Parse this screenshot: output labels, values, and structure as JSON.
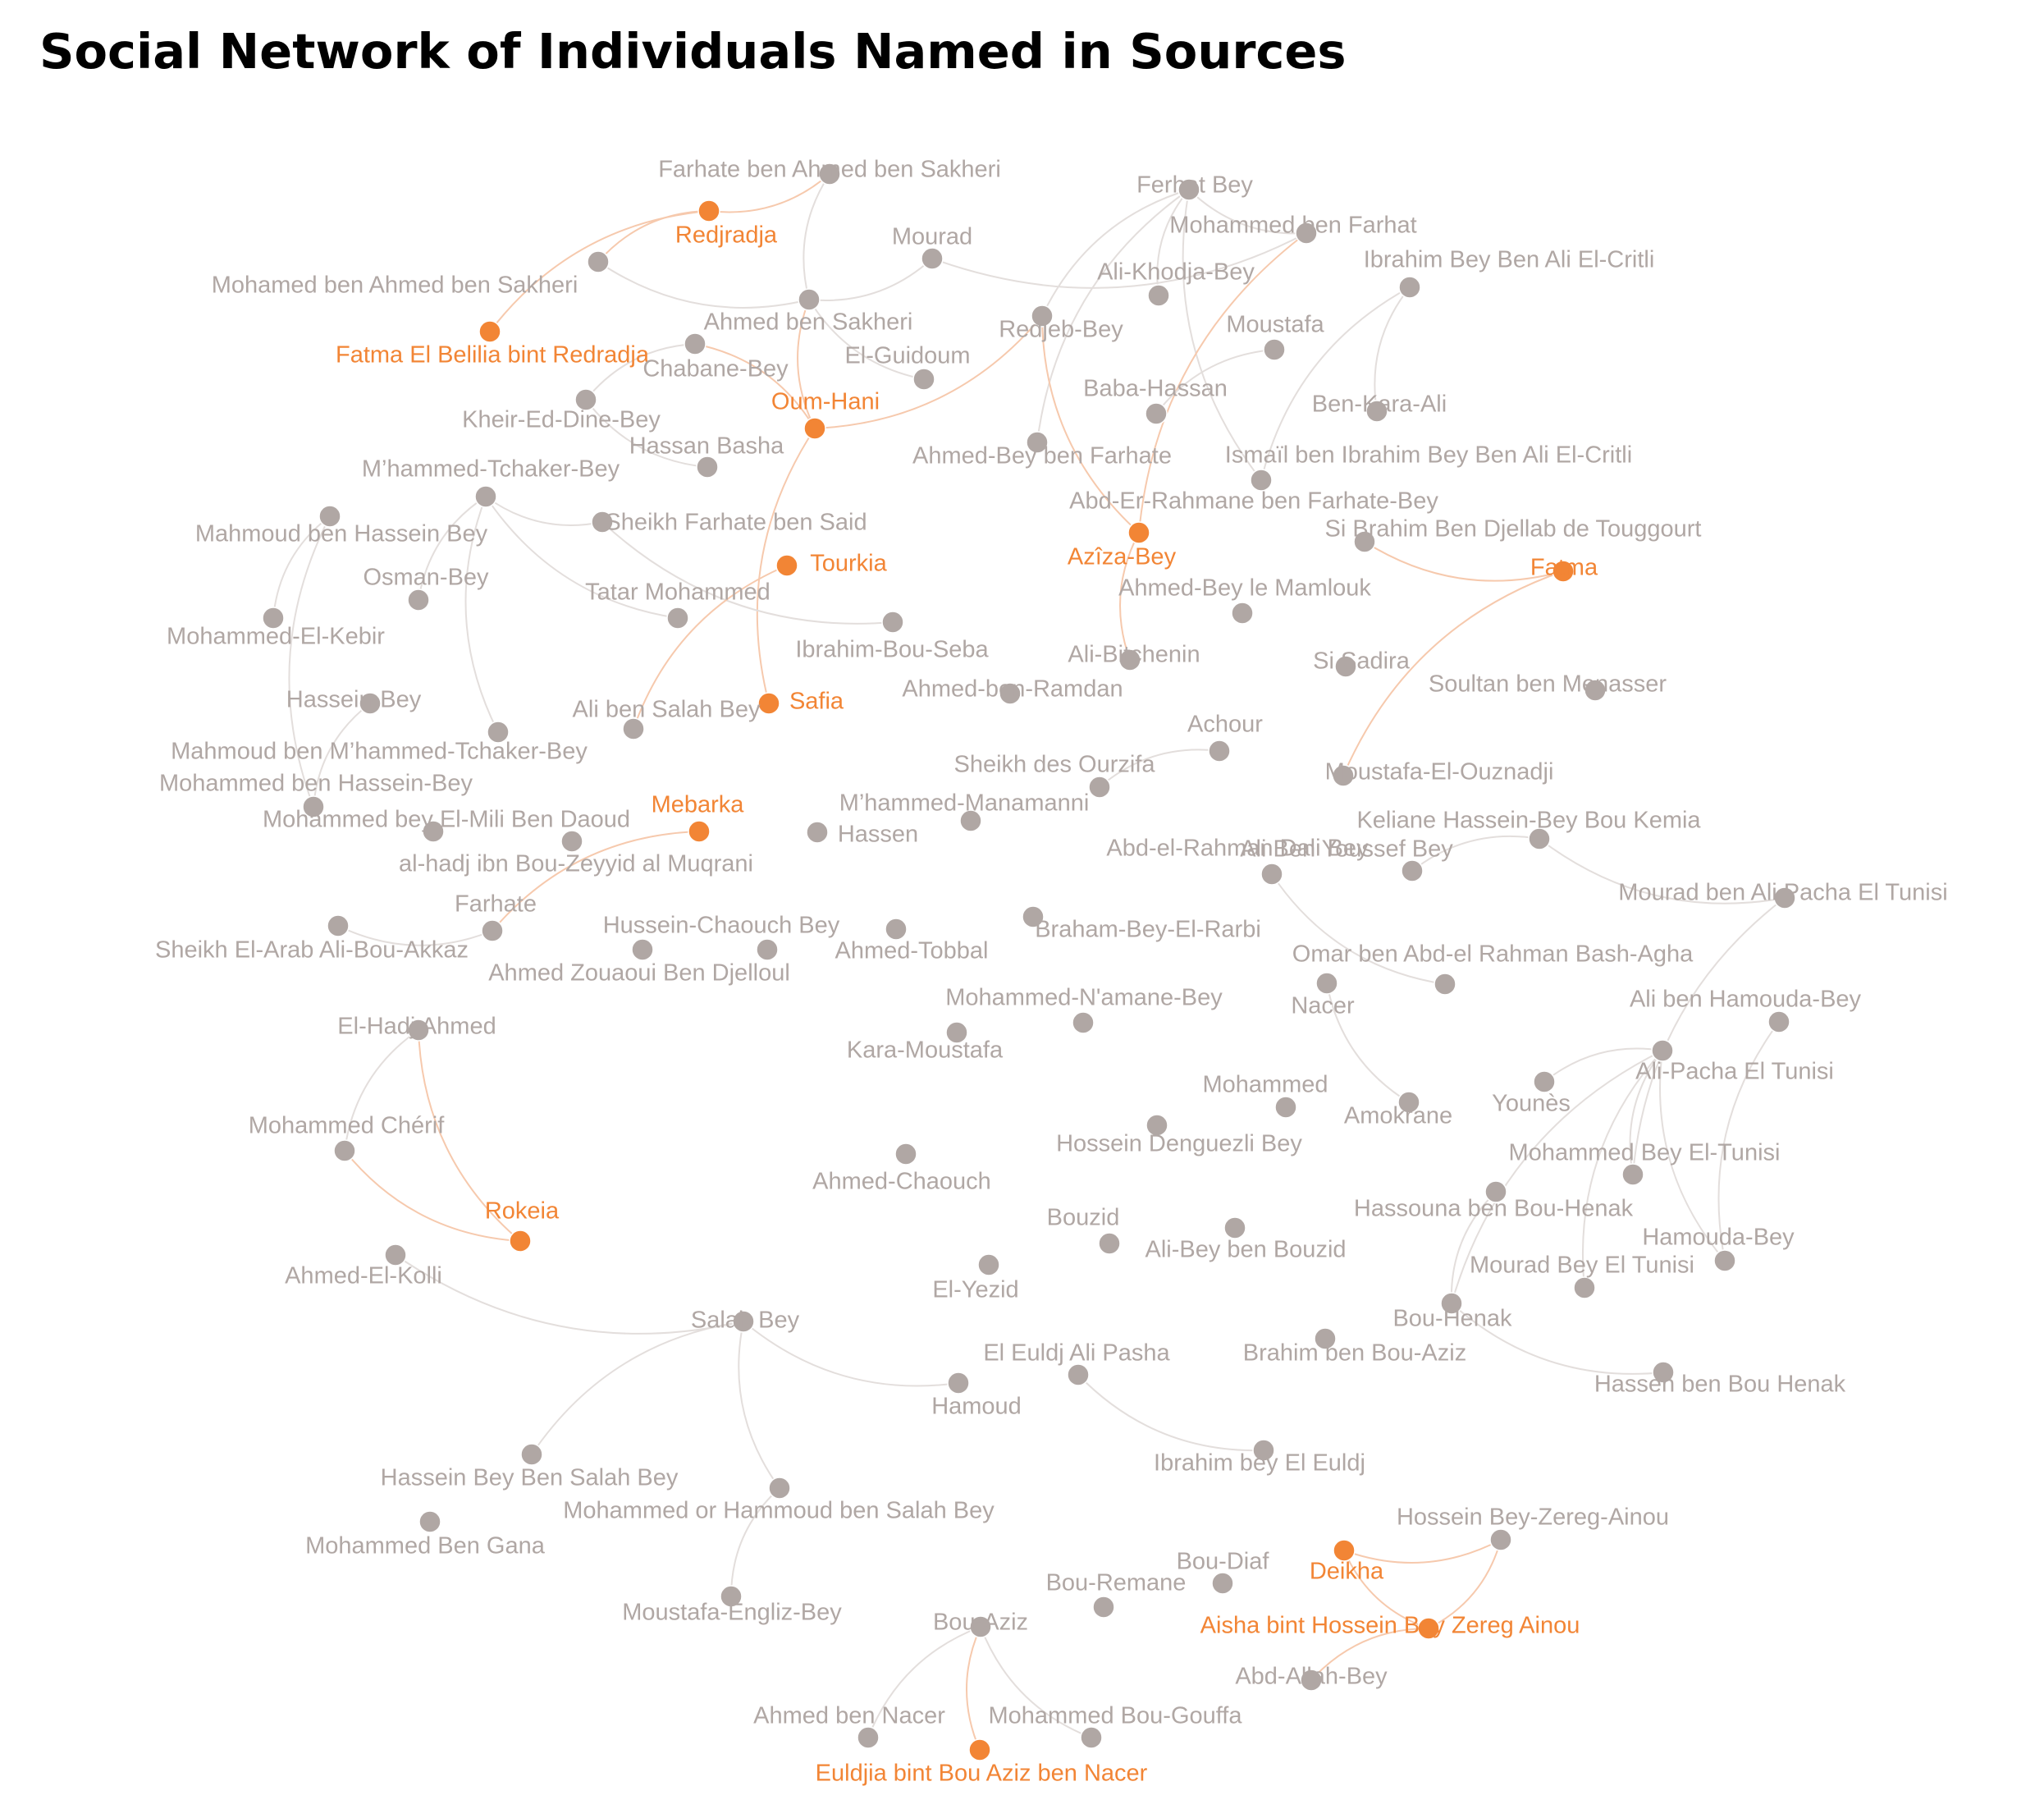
{
  "title": "Social Network of Individuals Named in Sources",
  "colors": {
    "male_node": "#b0a7a4",
    "male_label": "#b0a7a4",
    "female_node": "#f28535",
    "female_label": "#f28535",
    "edge": "#e3dedc",
    "edge_female": "#f6c9ad"
  },
  "nodes": [
    {
      "id": "farhate-ben-ahmed",
      "label": "Farhate ben Ahmed ben Sakheri",
      "female": false
    },
    {
      "id": "redjradja",
      "label": "Redjradja",
      "female": true
    },
    {
      "id": "mohamed-ben-ahmed",
      "label": "Mohamed ben Ahmed ben Sakheri",
      "female": false
    },
    {
      "id": "fatma-el-belilia",
      "label": "Fatma El Belilia bint Redradja",
      "female": true
    },
    {
      "id": "ahmed-ben-sakheri",
      "label": "Ahmed ben Sakheri",
      "female": false
    },
    {
      "id": "mourad",
      "label": "Mourad",
      "female": false
    },
    {
      "id": "chabane-bey",
      "label": "Chabane-Bey",
      "female": false
    },
    {
      "id": "el-guidoum",
      "label": "El-Guidoum",
      "female": false
    },
    {
      "id": "oum-hani",
      "label": "Oum-Hani",
      "female": true
    },
    {
      "id": "kheir-ed-dine-bey",
      "label": "Kheir-Ed-Dine-Bey",
      "female": false
    },
    {
      "id": "hassan-basha",
      "label": "Hassan Basha",
      "female": false
    },
    {
      "id": "mhammed-tchaker-bey",
      "label": "M’hammed-Tchaker-Bey",
      "female": false
    },
    {
      "id": "sheikh-farhate",
      "label": "Sheikh Farhate ben Said",
      "female": false
    },
    {
      "id": "mahmoud-ben-hassein",
      "label": "Mahmoud ben Hassein Bey",
      "female": false
    },
    {
      "id": "osman-bey",
      "label": "Osman-Bey",
      "female": false
    },
    {
      "id": "tourkia",
      "label": "Tourkia",
      "female": true
    },
    {
      "id": "tatar-mohammed",
      "label": "Tatar Mohammed",
      "female": false
    },
    {
      "id": "mohammed-el-kebir",
      "label": "Mohammed-El-Kebir",
      "female": false
    },
    {
      "id": "ibrahim-bou-seba",
      "label": "Ibrahim-Bou-Seba",
      "female": false
    },
    {
      "id": "hassein-bey",
      "label": "Hassein-Bey",
      "female": false
    },
    {
      "id": "ali-ben-salah",
      "label": "Ali ben Salah Bey",
      "female": false
    },
    {
      "id": "safia",
      "label": "Safia",
      "female": true
    },
    {
      "id": "mahmoud-ben-mhammed",
      "label": "Mahmoud ben M’hammed-Tchaker-Bey",
      "female": false
    },
    {
      "id": "mohammed-ben-hassein-bey",
      "label": "Mohammed ben Hassein-Bey",
      "female": false
    },
    {
      "id": "mohammed-bey-el-mili",
      "label": "Mohammed bey El-Mili Ben Daoud",
      "female": false
    },
    {
      "id": "mebarka",
      "label": "Mebarka",
      "female": true
    },
    {
      "id": "al-hadj",
      "label": "al-hadj ibn Bou-Zeyyid al Muqrani",
      "female": false
    },
    {
      "id": "farhate",
      "label": "Farhate",
      "female": false
    },
    {
      "id": "sheikh-el-arab",
      "label": "Sheikh El-Arab Ali-Bou-Akkaz",
      "female": false
    },
    {
      "id": "ahmed-zouaoui",
      "label": "Ahmed Zouaoui Ben Djelloul",
      "female": false
    },
    {
      "id": "hussein-chaouch",
      "label": "Hussein-Chaouch Bey",
      "female": false
    },
    {
      "id": "hassen",
      "label": "Hassen",
      "female": false
    },
    {
      "id": "mhammed-manamanni",
      "label": "M’hammed-Manamanni",
      "female": false
    },
    {
      "id": "ferhat-bey",
      "label": "Ferhat Bey",
      "female": false
    },
    {
      "id": "mohammed-ben-farhat",
      "label": "Mohammed ben Farhat",
      "female": false
    },
    {
      "id": "ali-khodja-bey",
      "label": "Ali-Khodja-Bey",
      "female": false
    },
    {
      "id": "redjeb-bey",
      "label": "Redjeb-Bey",
      "female": false
    },
    {
      "id": "ahmed-bey-ben-farhate",
      "label": "Ahmed-Bey ben Farhate",
      "female": false
    },
    {
      "id": "moustafa",
      "label": "Moustafa",
      "female": false
    },
    {
      "id": "baba-hassan",
      "label": "Baba-Hassan",
      "female": false
    },
    {
      "id": "ibrahim-el-critli",
      "label": "Ibrahim Bey Ben Ali El-Critli",
      "female": false
    },
    {
      "id": "ben-kara-ali",
      "label": "Ben-Kara-Ali",
      "female": false
    },
    {
      "id": "ismail",
      "label": "Ismaïl ben Ibrahim Bey Ben Ali El-Critli",
      "female": false
    },
    {
      "id": "abd-er-rahmane",
      "label": "Abd-Er-Rahmane ben Farhate-Bey",
      "female": false
    },
    {
      "id": "aziza-bey",
      "label": "Azîza-Bey",
      "female": true
    },
    {
      "id": "si-brahim",
      "label": "Si Brahim Ben Djellab de Touggourt",
      "female": false
    },
    {
      "id": "fatma",
      "label": "Fatma",
      "female": true
    },
    {
      "id": "ahmed-bey-mamlouk",
      "label": "Ahmed-Bey le Mamlouk",
      "female": false
    },
    {
      "id": "ali-bitchenin",
      "label": "Ali-Bitchenin",
      "female": false
    },
    {
      "id": "si-sadira",
      "label": "Si Sadira",
      "female": false
    },
    {
      "id": "ahmed-ben-ramdan",
      "label": "Ahmed-ben-Ramdan",
      "female": false
    },
    {
      "id": "soultan",
      "label": "Soultan ben Menasser",
      "female": false
    },
    {
      "id": "achour",
      "label": "Achour",
      "female": false
    },
    {
      "id": "sheikh-ourzifa",
      "label": "Sheikh des Ourzifa",
      "female": false
    },
    {
      "id": "moustafa-el-ouznadji",
      "label": "Moustafa-El-Ouznadji",
      "female": false
    },
    {
      "id": "keliane",
      "label": "Keliane Hassein-Bey Bou Kemia",
      "female": false
    },
    {
      "id": "abd-el-rahman-dali",
      "label": "Abd-el-Rahman Dali Bey",
      "female": false
    },
    {
      "id": "ali-ben-youssef",
      "label": "Ali Ben Youssef Bey",
      "female": false
    },
    {
      "id": "ahmed-tobbal",
      "label": "Ahmed-Tobbal",
      "female": false
    },
    {
      "id": "braham-bey",
      "label": "Braham-Bey-El-Rarbi",
      "female": false
    },
    {
      "id": "mourad-ben-ali",
      "label": "Mourad ben Ali Pacha El Tunisi",
      "female": false
    },
    {
      "id": "omar-ben-abd",
      "label": "Omar ben Abd-el Rahman Bash-Agha",
      "female": false
    },
    {
      "id": "nacer",
      "label": "Nacer",
      "female": false
    },
    {
      "id": "mohammed-namane",
      "label": "Mohammed-N'amane-Bey",
      "female": false
    },
    {
      "id": "kara-moustafa",
      "label": "Kara-Moustafa",
      "female": false
    },
    {
      "id": "ali-ben-hamouda",
      "label": "Ali ben Hamouda-Bey",
      "female": false
    },
    {
      "id": "ali-pacha",
      "label": "Ali-Pacha El Tunisi",
      "female": false
    },
    {
      "id": "younes",
      "label": "Younès",
      "female": false
    },
    {
      "id": "amokrane",
      "label": "Amokrane",
      "female": false
    },
    {
      "id": "mohammed",
      "label": "Mohammed",
      "female": false
    },
    {
      "id": "hossein-denguezli",
      "label": "Hossein Denguezli Bey",
      "female": false
    },
    {
      "id": "el-hadj-ahmed",
      "label": "El-Hadj Ahmed",
      "female": false
    },
    {
      "id": "mohammed-cherif",
      "label": "Mohammed Chérif",
      "female": false
    },
    {
      "id": "rokeia",
      "label": "Rokeia",
      "female": true
    },
    {
      "id": "ahmed-el-kolli",
      "label": "Ahmed-El-Kolli",
      "female": false
    },
    {
      "id": "ahmed-chaouch",
      "label": "Ahmed-Chaouch",
      "female": false
    },
    {
      "id": "mohammed-bey-el-tunisi",
      "label": "Mohammed Bey El-Tunisi",
      "female": false
    },
    {
      "id": "hassouna",
      "label": "Hassouna ben Bou-Henak",
      "female": false
    },
    {
      "id": "bouzid",
      "label": "Bouzid",
      "female": false
    },
    {
      "id": "ali-bey-ben-bouzid",
      "label": "Ali-Bey ben Bouzid",
      "female": false
    },
    {
      "id": "hamouda-bey",
      "label": "Hamouda-Bey",
      "female": false
    },
    {
      "id": "el-yezid",
      "label": "El-Yezid",
      "female": false
    },
    {
      "id": "mourad-bey-el-tunisi",
      "label": "Mourad Bey El Tunisi",
      "female": false
    },
    {
      "id": "bou-henak",
      "label": "Bou-Henak",
      "female": false
    },
    {
      "id": "salah-bey",
      "label": "Salah Bey",
      "female": false
    },
    {
      "id": "el-euldj-ali",
      "label": "El Euldj Ali Pasha",
      "female": false
    },
    {
      "id": "brahim-ben-bou-aziz",
      "label": "Brahim ben Bou-Aziz",
      "female": false
    },
    {
      "id": "hamoud",
      "label": "Hamoud",
      "female": false
    },
    {
      "id": "hassen-ben-bou-henak",
      "label": "Hassen ben Bou Henak",
      "female": false
    },
    {
      "id": "ibrahim-bey-el-euldj",
      "label": "Ibrahim bey El Euldj",
      "female": false
    },
    {
      "id": "hassein-bey-ben-salah",
      "label": "Hassein Bey Ben Salah Bey",
      "female": false
    },
    {
      "id": "mohammed-or-hammoud",
      "label": "Mohammed or Hammoud ben Salah Bey",
      "female": false
    },
    {
      "id": "mohammed-ben-gana",
      "label": "Mohammed Ben Gana",
      "female": false
    },
    {
      "id": "hossein-zereg",
      "label": "Hossein Bey-Zereg-Ainou",
      "female": false
    },
    {
      "id": "deikha",
      "label": "Deikha",
      "female": true
    },
    {
      "id": "bou-diaf",
      "label": "Bou-Diaf",
      "female": false
    },
    {
      "id": "bou-remane",
      "label": "Bou-Remane",
      "female": false
    },
    {
      "id": "moustafa-engliz",
      "label": "Moustafa-Engliz-Bey",
      "female": false
    },
    {
      "id": "aisha",
      "label": "Aisha bint Hossein Bey Zereg Ainou",
      "female": true
    },
    {
      "id": "bou-aziz",
      "label": "Bou-Aziz",
      "female": false
    },
    {
      "id": "abd-allah-bey",
      "label": "Abd-Allah-Bey",
      "female": false
    },
    {
      "id": "ahmed-ben-nacer",
      "label": "Ahmed ben Nacer",
      "female": false
    },
    {
      "id": "mohammed-bou-gouffa",
      "label": "Mohammed Bou-Gouffa",
      "female": false
    },
    {
      "id": "euldjia",
      "label": "Euldjia bint Bou Aziz ben Nacer",
      "female": true
    }
  ],
  "edges": [
    [
      "redjradja",
      "farhate-ben-ahmed"
    ],
    [
      "redjradja",
      "fatma-el-belilia"
    ],
    [
      "redjradja",
      "mohamed-ben-ahmed"
    ],
    [
      "farhate-ben-ahmed",
      "ahmed-ben-sakheri"
    ],
    [
      "mohamed-ben-ahmed",
      "ahmed-ben-sakheri"
    ],
    [
      "ahmed-ben-sakheri",
      "mourad"
    ],
    [
      "ahmed-ben-sakheri",
      "el-guidoum"
    ],
    [
      "ahmed-ben-sakheri",
      "oum-hani"
    ],
    [
      "mourad",
      "mohammed-ben-farhat"
    ],
    [
      "oum-hani",
      "chabane-bey"
    ],
    [
      "oum-hani",
      "safia"
    ],
    [
      "oum-hani",
      "redjeb-bey"
    ],
    [
      "kheir-ed-dine-bey",
      "hassan-basha"
    ],
    [
      "chabane-bey",
      "kheir-ed-dine-bey"
    ],
    [
      "mhammed-tchaker-bey",
      "sheikh-farhate"
    ],
    [
      "mhammed-tchaker-bey",
      "tatar-mohammed"
    ],
    [
      "mhammed-tchaker-bey",
      "mahmoud-ben-mhammed"
    ],
    [
      "mhammed-tchaker-bey",
      "osman-bey"
    ],
    [
      "sheikh-farhate",
      "ibrahim-bou-seba"
    ],
    [
      "tourkia",
      "ali-ben-salah"
    ],
    [
      "mahmoud-ben-hassein",
      "mohammed-el-kebir"
    ],
    [
      "mahmoud-ben-hassein",
      "mohammed-ben-hassein-bey"
    ],
    [
      "hassein-bey",
      "mohammed-ben-hassein-bey"
    ],
    [
      "mebarka",
      "farhate"
    ],
    [
      "sheikh-el-arab",
      "farhate"
    ],
    [
      "ferhat-bey",
      "ali-khodja-bey"
    ],
    [
      "ferhat-bey",
      "mohammed-ben-farhat"
    ],
    [
      "ferhat-bey",
      "redjeb-bey"
    ],
    [
      "ferhat-bey",
      "ismail"
    ],
    [
      "ferhat-bey",
      "ahmed-bey-ben-farhate"
    ],
    [
      "ibrahim-el-critli",
      "ismail"
    ],
    [
      "ibrahim-el-critli",
      "ben-kara-ali"
    ],
    [
      "mohammed-ben-farhat",
      "aziza-bey"
    ],
    [
      "aziza-bey",
      "ali-bitchenin"
    ],
    [
      "redjeb-bey",
      "aziza-bey"
    ],
    [
      "moustafa",
      "baba-hassan"
    ],
    [
      "si-brahim",
      "fatma"
    ],
    [
      "fatma",
      "moustafa-el-ouznadji"
    ],
    [
      "achour",
      "sheikh-ourzifa"
    ],
    [
      "keliane",
      "mourad-ben-ali"
    ],
    [
      "keliane",
      "ali-ben-youssef"
    ],
    [
      "abd-el-rahman-dali",
      "omar-ben-abd"
    ],
    [
      "nacer",
      "amokrane"
    ],
    [
      "ali-pacha",
      "younes"
    ],
    [
      "ali-pacha",
      "mohammed-bey-el-tunisi"
    ],
    [
      "ali-pacha",
      "mourad-bey-el-tunisi"
    ],
    [
      "ali-pacha",
      "bou-henak"
    ],
    [
      "ali-pacha",
      "hamouda-bey"
    ],
    [
      "ali-ben-hamouda",
      "hamouda-bey"
    ],
    [
      "mourad-ben-ali",
      "mohammed-bey-el-tunisi"
    ],
    [
      "hassouna",
      "bou-henak"
    ],
    [
      "bou-henak",
      "hassen-ben-bou-henak"
    ],
    [
      "el-hadj-ahmed",
      "mohammed-cherif"
    ],
    [
      "el-hadj-ahmed",
      "rokeia"
    ],
    [
      "mohammed-cherif",
      "rokeia"
    ],
    [
      "ahmed-el-kolli",
      "salah-bey"
    ],
    [
      "salah-bey",
      "hamoud"
    ],
    [
      "salah-bey",
      "hassein-bey-ben-salah"
    ],
    [
      "salah-bey",
      "mohammed-or-hammoud"
    ],
    [
      "mohammed-or-hammoud",
      "moustafa-engliz"
    ],
    [
      "el-euldj-ali",
      "ibrahim-bey-el-euldj"
    ],
    [
      "deikha",
      "hossein-zereg"
    ],
    [
      "deikha",
      "aisha"
    ],
    [
      "aisha",
      "hossein-zereg"
    ],
    [
      "aisha",
      "abd-allah-bey"
    ],
    [
      "bou-aziz",
      "ahmed-ben-nacer"
    ],
    [
      "bou-aziz",
      "euldjia"
    ],
    [
      "bou-aziz",
      "mohammed-bou-gouffa"
    ]
  ]
}
